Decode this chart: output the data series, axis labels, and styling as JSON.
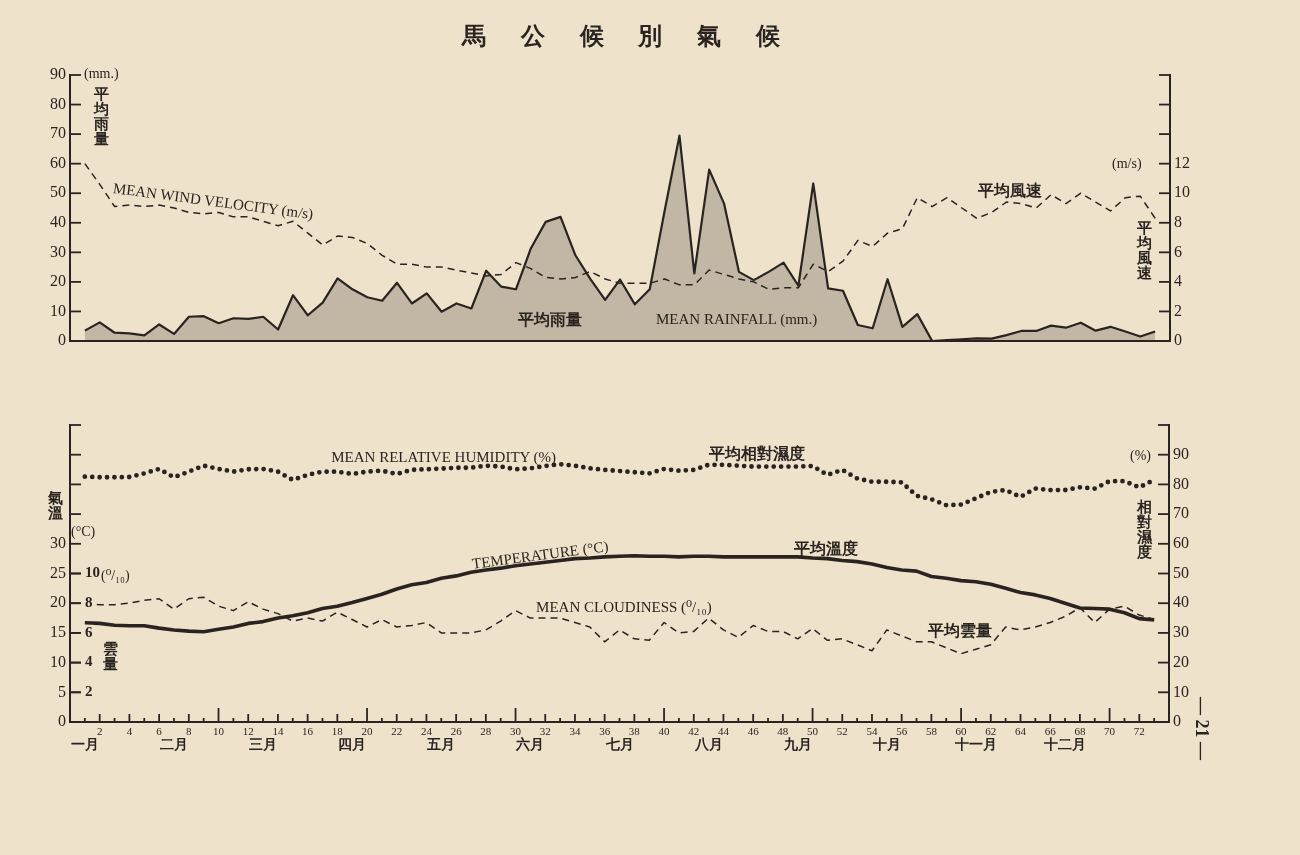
{
  "chart_data": [
    {
      "type": "area",
      "title": "馬公候別氣候",
      "ylabel": "平均雨量",
      "y2label": "平均風速",
      "x": [
        1,
        2,
        3,
        4,
        5,
        6,
        7,
        8,
        9,
        10,
        11,
        12,
        13,
        14,
        15,
        16,
        17,
        18,
        19,
        20,
        21,
        22,
        23,
        24,
        25,
        26,
        27,
        28,
        29,
        30,
        31,
        32,
        33,
        34,
        35,
        36,
        37,
        38,
        39,
        40,
        41,
        42,
        43,
        44,
        45,
        46,
        47,
        48,
        49,
        50,
        51,
        52,
        53,
        54,
        55,
        56,
        57,
        58,
        59,
        60,
        61,
        62,
        63,
        64,
        65,
        66,
        67,
        68,
        69,
        70,
        71,
        72,
        73
      ],
      "xlim": [
        0,
        74
      ],
      "ylim": [
        0,
        90
      ],
      "yticks": [
        0,
        10,
        20,
        30,
        40,
        50,
        60,
        70,
        80,
        90
      ],
      "y2lim": [
        0,
        18
      ],
      "y2ticks": [
        0,
        2,
        4,
        6,
        8,
        10,
        12,
        {
          "value": 14,
          "label": null
        },
        {
          "value": 16,
          "label": null
        },
        {
          "value": 18,
          "label": null
        }
      ],
      "tick_labels": "y",
      "series": [
        {
          "name": "MEAN RAINFALL (mm.)",
          "type": "area",
          "color": "#2a2420",
          "values": [
            3.5,
            6.3,
            2.8,
            2.6,
            1.9,
            5.6,
            2.4,
            8.2,
            8.4,
            6.0,
            7.7,
            7.5,
            8.2,
            3.9,
            15.5,
            8.7,
            13.0,
            21.2,
            17.5,
            14.8,
            13.6,
            19.7,
            12.7,
            16.1,
            9.9,
            12.7,
            11.0,
            23.8,
            18.4,
            17.5,
            31.3,
            40.3,
            42.0,
            29.0,
            21.0,
            13.9,
            20.8,
            12.4,
            17.5,
            44.0,
            69.5,
            22.9,
            58.0,
            46.5,
            23.4,
            20.6,
            23.4,
            26.5,
            18.7,
            53.3,
            17.8,
            17.0,
            5.4,
            4.3,
            20.9,
            4.8,
            9.1,
            0,
            0.3,
            0.6,
            0.9,
            0.8,
            2.0,
            3.4,
            3.4,
            5.2,
            4.5,
            6.2,
            3.5,
            4.8,
            3.2,
            1.5,
            3.2
          ]
        },
        {
          "name": "MEAN WIND VELOCITY (m/s)",
          "type": "line",
          "axis": "y2",
          "line_style": "dashed",
          "color": "#2a2420",
          "values": [
            12.0,
            10.6,
            9.1,
            9.2,
            9.1,
            9.2,
            9.0,
            8.7,
            8.6,
            8.7,
            8.4,
            8.4,
            8.1,
            7.8,
            8.1,
            7.3,
            6.5,
            7.1,
            7.0,
            6.6,
            5.8,
            5.2,
            5.2,
            5.0,
            5.0,
            4.8,
            4.6,
            4.4,
            4.5,
            5.3,
            4.9,
            4.3,
            4.2,
            4.3,
            4.7,
            4.2,
            3.9,
            3.9,
            3.9,
            4.2,
            3.8,
            3.8,
            4.8,
            4.5,
            4.2,
            4.0,
            3.5,
            3.6,
            3.6,
            5.2,
            4.7,
            5.4,
            6.8,
            6.4,
            7.3,
            7.6,
            9.7,
            9.1,
            9.7,
            9.0,
            8.3,
            8.7,
            9.4,
            9.3,
            9.0,
            9.9,
            9.3,
            10.0,
            9.4,
            8.8,
            9.7,
            9.8,
            8.3
          ]
        }
      ],
      "annotations": [
        "(mm.)",
        "(m/s)",
        "平均雨量",
        "平均風速"
      ]
    },
    {
      "type": "line",
      "ylabel": "氣溫",
      "y2label": "相對濕度",
      "y3label": "雲量",
      "x": [
        1,
        2,
        3,
        4,
        5,
        6,
        7,
        8,
        9,
        10,
        11,
        12,
        13,
        14,
        15,
        16,
        17,
        18,
        19,
        20,
        21,
        22,
        23,
        24,
        25,
        26,
        27,
        28,
        29,
        30,
        31,
        32,
        33,
        34,
        35,
        36,
        37,
        38,
        39,
        40,
        41,
        42,
        43,
        44,
        45,
        46,
        47,
        48,
        49,
        50,
        51,
        52,
        53,
        54,
        55,
        56,
        57,
        58,
        59,
        60,
        61,
        62,
        63,
        64,
        65,
        66,
        67,
        68,
        69,
        70,
        71,
        72,
        73
      ],
      "xlim": [
        0,
        74
      ],
      "xticks": [
        {
          "value": 1,
          "label": null
        },
        2,
        {
          "value": 3,
          "label": null
        },
        4,
        {
          "value": 5,
          "label": null
        },
        6,
        {
          "value": 7,
          "label": null
        },
        8,
        {
          "value": 9,
          "label": null
        },
        10,
        {
          "value": 11,
          "label": null
        },
        12,
        {
          "value": 13,
          "label": null
        },
        14,
        {
          "value": 15,
          "label": null
        },
        16,
        {
          "value": 17,
          "label": null
        },
        18,
        {
          "value": 19,
          "label": null
        },
        20,
        {
          "value": 21,
          "label": null
        },
        22,
        {
          "value": 23,
          "label": null
        },
        24,
        {
          "value": 25,
          "label": null
        },
        26,
        {
          "value": 27,
          "label": null
        },
        28,
        {
          "value": 29,
          "label": null
        },
        30,
        {
          "value": 31,
          "label": null
        },
        32,
        {
          "value": 33,
          "label": null
        },
        34,
        {
          "value": 35,
          "label": null
        },
        36,
        {
          "value": 37,
          "label": null
        },
        38,
        {
          "value": 39,
          "label": null
        },
        40,
        {
          "value": 41,
          "label": null
        },
        42,
        {
          "value": 43,
          "label": null
        },
        44,
        {
          "value": 45,
          "label": null
        },
        46,
        {
          "value": 47,
          "label": null
        },
        48,
        {
          "value": 49,
          "label": null
        },
        50,
        {
          "value": 51,
          "label": null
        },
        52,
        {
          "value": 53,
          "label": null
        },
        54,
        {
          "value": 55,
          "label": null
        },
        56,
        {
          "value": 57,
          "label": null
        },
        58,
        {
          "value": 59,
          "label": null
        },
        60,
        {
          "value": 61,
          "label": null
        },
        62,
        {
          "value": 63,
          "label": null
        },
        64,
        {
          "value": 65,
          "label": null
        },
        66,
        {
          "value": 67,
          "label": null
        },
        68,
        {
          "value": 69,
          "label": null
        },
        70,
        {
          "value": 71,
          "label": null
        },
        72,
        {
          "value": 73,
          "label": null
        }
      ],
      "ylim": [
        0,
        50
      ],
      "yticks": [
        0,
        5,
        10,
        15,
        20,
        25,
        30,
        {
          "value": 35,
          "label": null
        },
        {
          "value": 40,
          "label": null
        },
        {
          "value": 45,
          "label": null
        },
        {
          "value": 50,
          "label": null
        }
      ],
      "y2lim": [
        0,
        100
      ],
      "y2ticks": [
        0,
        10,
        20,
        30,
        40,
        50,
        60,
        70,
        80,
        90,
        {
          "value": 100,
          "label": null
        }
      ],
      "y3lim": [
        0,
        20
      ],
      "y3ticks": [
        2,
        4,
        6,
        8,
        10
      ],
      "series": [
        {
          "name": "MEAN RELATIVE HUMIDITY (%)",
          "axis": "y2",
          "line_style": "dotted",
          "color": "#2a2420",
          "values": [
            82.6,
            82.4,
            82.4,
            82.5,
            83.7,
            85.2,
            82.4,
            84.3,
            86.3,
            85.2,
            84.3,
            85.1,
            85.2,
            84.3,
            81.5,
            83.2,
            84.3,
            84.3,
            83.5,
            84.3,
            84.6,
            83.5,
            84.9,
            85.1,
            85.3,
            85.6,
            85.6,
            86.3,
            86.0,
            85.1,
            85.4,
            86.2,
            86.8,
            86.3,
            85.4,
            84.9,
            84.5,
            84.1,
            83.7,
            85.2,
            84.6,
            84.9,
            86.6,
            86.6,
            86.3,
            86.0,
            86.0,
            86.0,
            86.0,
            86.2,
            83.2,
            84.9,
            82.0,
            80.9,
            80.9,
            80.7,
            76.2,
            75.0,
            73.0,
            73.2,
            75.3,
            77.5,
            78.1,
            75.8,
            78.6,
            78.1,
            78.1,
            79.0,
            78.6,
            81.1,
            81.1,
            79.0,
            81.5
          ]
        },
        {
          "name": "TEMPERATURE (°C)",
          "line_style": "solid",
          "color": "#2a2420",
          "values": [
            16.7,
            16.6,
            16.3,
            16.2,
            16.2,
            15.8,
            15.5,
            15.3,
            15.2,
            15.6,
            16.0,
            16.6,
            16.9,
            17.5,
            17.9,
            18.4,
            19.1,
            19.5,
            20.1,
            20.8,
            21.5,
            22.4,
            23.1,
            23.5,
            24.2,
            24.6,
            25.2,
            25.6,
            25.9,
            26.3,
            26.6,
            26.9,
            27.2,
            27.5,
            27.6,
            27.8,
            27.9,
            28.0,
            27.9,
            27.9,
            27.8,
            27.9,
            27.9,
            27.8,
            27.8,
            27.8,
            27.8,
            27.8,
            27.8,
            27.6,
            27.5,
            27.2,
            27.0,
            26.6,
            26.0,
            25.6,
            25.4,
            24.5,
            24.2,
            23.8,
            23.6,
            23.2,
            22.5,
            21.8,
            21.4,
            20.8,
            20.0,
            19.2,
            19.1,
            19.0,
            18.4,
            17.4,
            17.2
          ]
        },
        {
          "name": "MEAN CLOUDINESS (⁰/₁₀)",
          "axis": "y3",
          "line_style": "dashed",
          "color": "#2a2420",
          "values": [
            8.0,
            7.9,
            7.9,
            8.0,
            8.2,
            8.3,
            7.6,
            8.3,
            8.4,
            7.8,
            7.5,
            8.1,
            7.6,
            7.3,
            6.8,
            7.0,
            6.8,
            7.4,
            6.9,
            6.4,
            6.9,
            6.4,
            6.5,
            6.7,
            6.0,
            6.0,
            6.0,
            6.2,
            6.8,
            7.5,
            7.0,
            7.0,
            7.0,
            6.7,
            6.4,
            5.4,
            6.2,
            5.6,
            5.5,
            6.7,
            6.0,
            6.1,
            7.0,
            6.2,
            5.7,
            6.5,
            6.1,
            6.1,
            5.6,
            6.3,
            5.5,
            5.6,
            5.2,
            4.8,
            6.2,
            5.8,
            5.4,
            5.4,
            5.0,
            4.6,
            4.9,
            5.2,
            6.4,
            6.2,
            6.4,
            6.7,
            7.1,
            7.7,
            6.7,
            7.6,
            7.8,
            7.2,
            6.9
          ]
        }
      ],
      "annotations": [
        "(°C)",
        "(⁰/₁₀)",
        "(%)",
        "— 21 —",
        "平均相對濕度",
        "平均溫度",
        "平均雲量",
        "一月",
        "二月",
        "三月",
        "四月",
        "五月",
        "六月",
        "七月",
        "八月",
        "九月",
        "十月",
        "十一月",
        "十二月"
      ]
    }
  ]
}
